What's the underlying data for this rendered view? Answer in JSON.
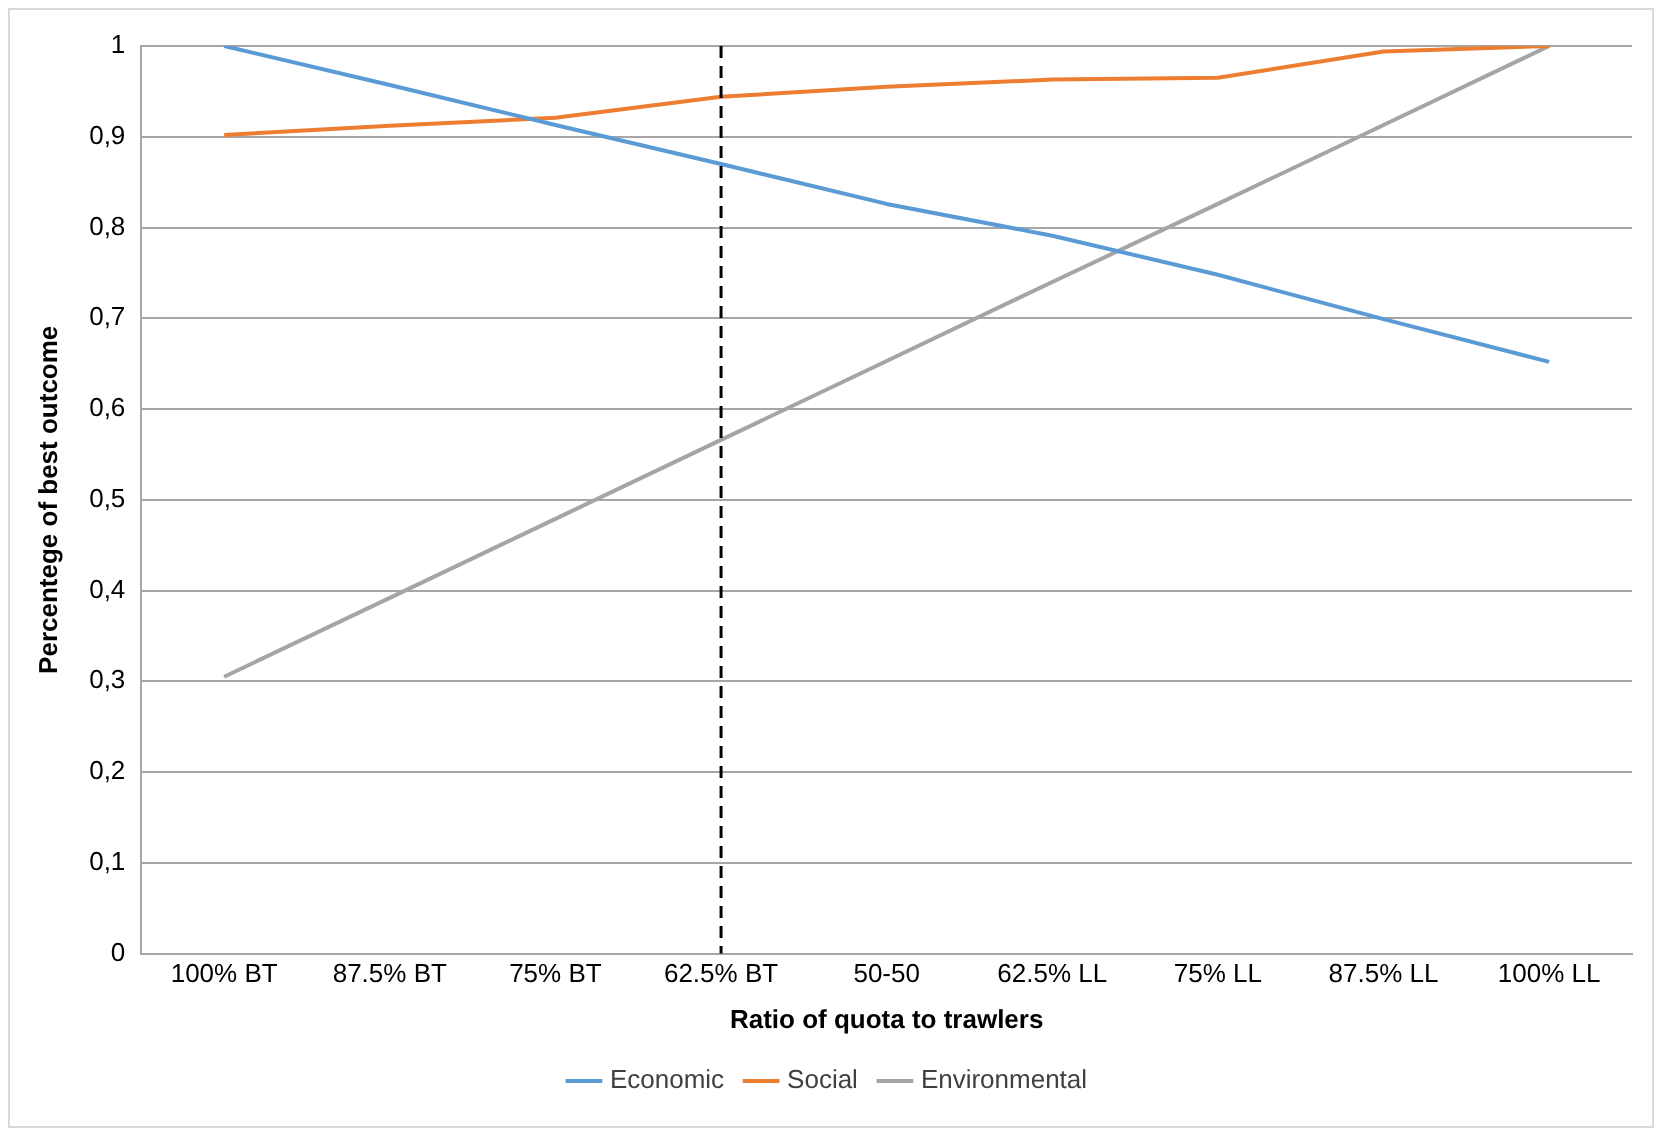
{
  "chart_data": {
    "type": "line",
    "xlabel": "Ratio of quota to trawlers",
    "ylabel": "Percentege of best outcome",
    "categories": [
      "100% BT",
      "87.5% BT",
      "75% BT",
      "62.5% BT",
      "50-50",
      "62.5% LL",
      "75% LL",
      "87.5% LL",
      "100% LL"
    ],
    "series": [
      {
        "name": "Economic",
        "color": "#5b9bd5",
        "values": [
          1.0,
          0.957,
          0.913,
          0.87,
          0.826,
          0.791,
          0.748,
          0.699,
          0.652
        ]
      },
      {
        "name": "Social",
        "color": "#ed7d31",
        "values": [
          0.902,
          0.912,
          0.921,
          0.944,
          0.955,
          0.963,
          0.965,
          0.994,
          1.0
        ]
      },
      {
        "name": "Environmental",
        "color": "#a5a5a5",
        "values": [
          0.305,
          0.392,
          0.479,
          0.566,
          0.653,
          0.74,
          0.826,
          0.913,
          1.0
        ]
      }
    ],
    "ylim": [
      0,
      1
    ],
    "yticks": [
      0,
      {
        "value": 0.1,
        "label": "0,1"
      },
      {
        "value": 0.2,
        "label": "0,2"
      },
      {
        "value": 0.3,
        "label": "0,3"
      },
      {
        "value": 0.4,
        "label": "0,4"
      },
      {
        "value": 0.5,
        "label": "0,5"
      },
      {
        "value": 0.6,
        "label": "0,6"
      },
      {
        "value": 0.7,
        "label": "0,7"
      },
      {
        "value": 0.8,
        "label": "0,8"
      },
      {
        "value": 0.9,
        "label": "0,9"
      },
      1
    ],
    "ref_lines": [
      {
        "axis": "x",
        "value": "62.5% BT",
        "color": "#000000",
        "line_style": "dashed"
      }
    ],
    "grid": "y",
    "legend": "bottom",
    "marker": "none",
    "line_style": "solid"
  }
}
